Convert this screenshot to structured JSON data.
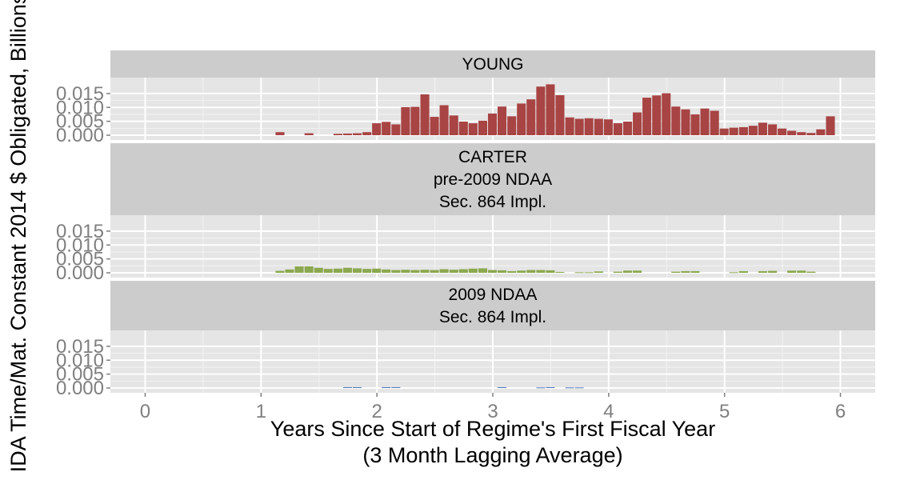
{
  "chart_data": {
    "type": "bar",
    "layout": "faceted-vertical",
    "xlabel_lines": [
      "Years Since Start of Regime's First Fiscal Year",
      "(3 Month Lagging Average)"
    ],
    "ylabel": "IDA Time/Mat. Constant 2014 $ Obligated, Billions",
    "xlim": [
      -0.3,
      6.3
    ],
    "ylim": [
      0,
      0.019
    ],
    "x_ticks": [
      0,
      1,
      2,
      3,
      4,
      5,
      6
    ],
    "y_ticks": [
      0.0,
      0.005,
      0.01,
      0.015
    ],
    "y_tick_labels": [
      "0.000",
      "0.005",
      "0.010",
      "0.015"
    ],
    "bin_width": 0.0833,
    "grid": true,
    "facets": [
      {
        "strip_lines": [
          "YOUNG"
        ],
        "color": "#A84444",
        "x": [
          1.167,
          1.417,
          1.667,
          1.75,
          1.833,
          1.917,
          2.0,
          2.083,
          2.167,
          2.25,
          2.333,
          2.417,
          2.5,
          2.583,
          2.667,
          2.75,
          2.833,
          2.917,
          3.0,
          3.083,
          3.167,
          3.25,
          3.333,
          3.417,
          3.5,
          3.583,
          3.667,
          3.75,
          3.833,
          3.917,
          4.0,
          4.083,
          4.167,
          4.25,
          4.333,
          4.417,
          4.5,
          4.583,
          4.667,
          4.75,
          4.833,
          4.917,
          5.0,
          5.083,
          5.167,
          5.25,
          5.333,
          5.417,
          5.5,
          5.583,
          5.667,
          5.75,
          5.833,
          5.917
        ],
        "values": [
          0.0011,
          0.0007,
          0.0005,
          0.0006,
          0.0007,
          0.0011,
          0.0043,
          0.0048,
          0.0039,
          0.0101,
          0.0102,
          0.0147,
          0.0066,
          0.0108,
          0.0071,
          0.0049,
          0.0043,
          0.0052,
          0.0078,
          0.0103,
          0.0068,
          0.0114,
          0.0129,
          0.0175,
          0.0183,
          0.0144,
          0.0064,
          0.0059,
          0.0061,
          0.0059,
          0.0057,
          0.0043,
          0.0049,
          0.0082,
          0.0135,
          0.0143,
          0.0151,
          0.0103,
          0.0093,
          0.0075,
          0.0096,
          0.0088,
          0.0024,
          0.0027,
          0.0029,
          0.0034,
          0.0045,
          0.0039,
          0.0024,
          0.0016,
          0.0011,
          0.0008,
          0.0021,
          0.0068
        ]
      },
      {
        "strip_lines": [
          "CARTER",
          "pre-2009 NDAA",
          "Sec. 864 Impl."
        ],
        "color": "#8BA84F",
        "x": [
          1.167,
          1.25,
          1.333,
          1.417,
          1.5,
          1.583,
          1.667,
          1.75,
          1.833,
          1.917,
          2.0,
          2.083,
          2.167,
          2.25,
          2.333,
          2.417,
          2.5,
          2.583,
          2.667,
          2.75,
          2.833,
          2.917,
          3.0,
          3.083,
          3.167,
          3.25,
          3.333,
          3.417,
          3.5,
          3.583,
          3.75,
          3.833,
          3.917,
          4.083,
          4.167,
          4.25,
          4.583,
          4.667,
          4.75,
          5.083,
          5.167,
          5.333,
          5.417,
          5.583,
          5.667,
          5.75
        ],
        "values": [
          0.0007,
          0.0012,
          0.0023,
          0.0023,
          0.0018,
          0.0014,
          0.0015,
          0.0018,
          0.0016,
          0.0014,
          0.0015,
          0.0012,
          0.001,
          0.0011,
          0.001,
          0.0011,
          0.001,
          0.0013,
          0.0011,
          0.0013,
          0.0015,
          0.0016,
          0.001,
          0.0009,
          0.0006,
          0.0008,
          0.001,
          0.001,
          0.0009,
          0.0003,
          0.0002,
          0.0002,
          0.0005,
          0.0004,
          0.0008,
          0.0008,
          0.0004,
          0.0006,
          0.0006,
          0.0002,
          0.0006,
          0.0006,
          0.0007,
          0.0008,
          0.0008,
          0.0004
        ]
      },
      {
        "strip_lines": [
          "2009 NDAA",
          "Sec. 864 Impl."
        ],
        "color": "#4F7DBE",
        "x": [
          1.75,
          1.833,
          2.083,
          2.167,
          3.083,
          3.417,
          3.5,
          3.667,
          3.75
        ],
        "values": [
          0.0003,
          0.0003,
          0.0003,
          0.0003,
          0.0003,
          0.0002,
          0.0003,
          0.0002,
          0.0002
        ]
      }
    ]
  }
}
